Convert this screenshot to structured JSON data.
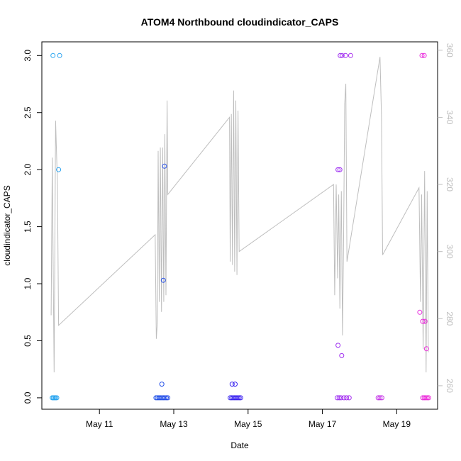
{
  "chart_data": {
    "type": "scatter",
    "title": "ATOM4 Northbound cloudindicator_CAPS",
    "xlabel": "Date",
    "ylabel": "cloudindicator_CAPS",
    "x_ticks": [
      {
        "day": 11,
        "label": "May 11"
      },
      {
        "day": 13,
        "label": "May 13"
      },
      {
        "day": 15,
        "label": "May 15"
      },
      {
        "day": 17,
        "label": "May 17"
      },
      {
        "day": 19,
        "label": "May 19"
      }
    ],
    "x_range_days": [
      9.45,
      20.1
    ],
    "y_ticks": [
      "0.0",
      "0.5",
      "1.0",
      "1.5",
      "2.0",
      "2.5",
      "3.0"
    ],
    "ylim": [
      -0.1,
      3.12
    ],
    "y2_ticks": [
      "260",
      "280",
      "300",
      "320",
      "340",
      "360"
    ],
    "y2lim": [
      253,
      362.5
    ],
    "colors": {
      "line": "#bebebe",
      "right_axis": "#bebebe",
      "point_gradient": [
        "#29a8f0",
        "#1f5ae6",
        "#3b1ff0",
        "#9a2ef2",
        "#ef2ad9"
      ]
    },
    "points": [
      {
        "x": 9.75,
        "y": 3.0
      },
      {
        "x": 9.93,
        "y": 3.0
      },
      {
        "x": 9.9,
        "y": 2.0
      },
      {
        "x": 9.73,
        "y": 0
      },
      {
        "x": 9.76,
        "y": 0
      },
      {
        "x": 9.79,
        "y": 0
      },
      {
        "x": 9.82,
        "y": 0
      },
      {
        "x": 9.85,
        "y": 0
      },
      {
        "x": 12.68,
        "y": 0.12
      },
      {
        "x": 12.72,
        "y": 1.03
      },
      {
        "x": 12.75,
        "y": 2.03
      },
      {
        "x": 12.52,
        "y": 0
      },
      {
        "x": 12.56,
        "y": 0
      },
      {
        "x": 12.6,
        "y": 0
      },
      {
        "x": 12.64,
        "y": 0
      },
      {
        "x": 12.68,
        "y": 0
      },
      {
        "x": 12.72,
        "y": 0
      },
      {
        "x": 12.76,
        "y": 0
      },
      {
        "x": 12.8,
        "y": 0
      },
      {
        "x": 12.84,
        "y": 0
      },
      {
        "x": 14.57,
        "y": 0.12
      },
      {
        "x": 14.65,
        "y": 0.12
      },
      {
        "x": 14.52,
        "y": 0
      },
      {
        "x": 14.56,
        "y": 0
      },
      {
        "x": 14.6,
        "y": 0
      },
      {
        "x": 14.64,
        "y": 0
      },
      {
        "x": 14.68,
        "y": 0
      },
      {
        "x": 14.72,
        "y": 0
      },
      {
        "x": 14.76,
        "y": 0
      },
      {
        "x": 14.8,
        "y": 0
      },
      {
        "x": 17.42,
        "y": 2.0
      },
      {
        "x": 17.47,
        "y": 2.0
      },
      {
        "x": 17.42,
        "y": 0.46
      },
      {
        "x": 17.52,
        "y": 0.37
      },
      {
        "x": 17.48,
        "y": 3.0
      },
      {
        "x": 17.53,
        "y": 3.0
      },
      {
        "x": 17.62,
        "y": 3.0
      },
      {
        "x": 17.76,
        "y": 3.0
      },
      {
        "x": 17.4,
        "y": 0
      },
      {
        "x": 17.45,
        "y": 0
      },
      {
        "x": 17.5,
        "y": 0
      },
      {
        "x": 17.58,
        "y": 0
      },
      {
        "x": 17.65,
        "y": 0
      },
      {
        "x": 17.72,
        "y": 0
      },
      {
        "x": 18.5,
        "y": 0
      },
      {
        "x": 18.55,
        "y": 0
      },
      {
        "x": 18.6,
        "y": 0
      },
      {
        "x": 19.68,
        "y": 3.0
      },
      {
        "x": 19.74,
        "y": 3.0
      },
      {
        "x": 19.62,
        "y": 0.75
      },
      {
        "x": 19.7,
        "y": 0.67
      },
      {
        "x": 19.76,
        "y": 0.67
      },
      {
        "x": 19.8,
        "y": 0.43
      },
      {
        "x": 19.7,
        "y": 0
      },
      {
        "x": 19.74,
        "y": 0
      },
      {
        "x": 19.78,
        "y": 0
      },
      {
        "x": 19.82,
        "y": 0
      },
      {
        "x": 19.86,
        "y": 0
      }
    ],
    "line_series": [
      [
        9.7,
        281
      ],
      [
        9.73,
        328
      ],
      [
        9.76,
        290
      ],
      [
        9.78,
        264
      ],
      [
        9.82,
        339
      ],
      [
        9.87,
        320
      ],
      [
        9.9,
        278
      ],
      [
        12.5,
        305
      ],
      [
        12.53,
        274
      ],
      [
        12.56,
        279
      ],
      [
        12.58,
        330
      ],
      [
        12.61,
        285
      ],
      [
        12.64,
        331
      ],
      [
        12.67,
        282
      ],
      [
        12.7,
        331
      ],
      [
        12.73,
        285
      ],
      [
        12.76,
        335
      ],
      [
        12.79,
        287
      ],
      [
        12.82,
        345
      ],
      [
        12.84,
        317
      ],
      [
        14.5,
        340
      ],
      [
        14.52,
        297
      ],
      [
        14.55,
        341
      ],
      [
        14.58,
        296
      ],
      [
        14.61,
        348
      ],
      [
        14.64,
        294
      ],
      [
        14.67,
        345
      ],
      [
        14.7,
        293
      ],
      [
        14.73,
        342
      ],
      [
        14.76,
        300
      ],
      [
        17.3,
        320
      ],
      [
        17.33,
        287
      ],
      [
        17.37,
        320
      ],
      [
        17.41,
        292
      ],
      [
        17.44,
        317
      ],
      [
        17.47,
        283
      ],
      [
        17.51,
        318
      ],
      [
        17.54,
        275
      ],
      [
        17.57,
        302
      ],
      [
        17.6,
        344
      ],
      [
        17.63,
        350
      ],
      [
        17.66,
        297
      ],
      [
        18.55,
        358
      ],
      [
        18.59,
        340
      ],
      [
        18.62,
        299
      ],
      [
        19.6,
        319
      ],
      [
        19.64,
        285
      ],
      [
        19.67,
        317
      ],
      [
        19.71,
        271
      ],
      [
        19.75,
        324
      ],
      [
        19.79,
        264
      ],
      [
        19.82,
        318
      ],
      [
        19.85,
        270
      ]
    ]
  }
}
